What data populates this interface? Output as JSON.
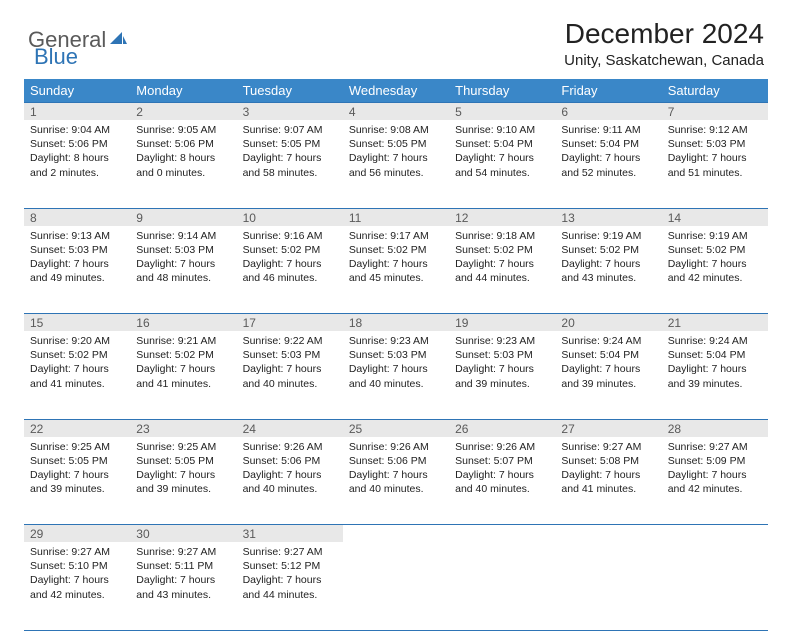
{
  "logo": {
    "text1": "General",
    "text2": "Blue"
  },
  "title": "December 2024",
  "location": "Unity, Saskatchewan, Canada",
  "colors": {
    "header_bg": "#3a87c8",
    "daynum_bg": "#e8e8e8",
    "border": "#2e74b5",
    "text": "#222222",
    "logo_gray": "#5a5a5a",
    "logo_blue": "#2e74b5"
  },
  "weekdays": [
    "Sunday",
    "Monday",
    "Tuesday",
    "Wednesday",
    "Thursday",
    "Friday",
    "Saturday"
  ],
  "weeks": [
    [
      {
        "num": "1",
        "sunrise": "Sunrise: 9:04 AM",
        "sunset": "Sunset: 5:06 PM",
        "daylight": "Daylight: 8 hours and 2 minutes."
      },
      {
        "num": "2",
        "sunrise": "Sunrise: 9:05 AM",
        "sunset": "Sunset: 5:06 PM",
        "daylight": "Daylight: 8 hours and 0 minutes."
      },
      {
        "num": "3",
        "sunrise": "Sunrise: 9:07 AM",
        "sunset": "Sunset: 5:05 PM",
        "daylight": "Daylight: 7 hours and 58 minutes."
      },
      {
        "num": "4",
        "sunrise": "Sunrise: 9:08 AM",
        "sunset": "Sunset: 5:05 PM",
        "daylight": "Daylight: 7 hours and 56 minutes."
      },
      {
        "num": "5",
        "sunrise": "Sunrise: 9:10 AM",
        "sunset": "Sunset: 5:04 PM",
        "daylight": "Daylight: 7 hours and 54 minutes."
      },
      {
        "num": "6",
        "sunrise": "Sunrise: 9:11 AM",
        "sunset": "Sunset: 5:04 PM",
        "daylight": "Daylight: 7 hours and 52 minutes."
      },
      {
        "num": "7",
        "sunrise": "Sunrise: 9:12 AM",
        "sunset": "Sunset: 5:03 PM",
        "daylight": "Daylight: 7 hours and 51 minutes."
      }
    ],
    [
      {
        "num": "8",
        "sunrise": "Sunrise: 9:13 AM",
        "sunset": "Sunset: 5:03 PM",
        "daylight": "Daylight: 7 hours and 49 minutes."
      },
      {
        "num": "9",
        "sunrise": "Sunrise: 9:14 AM",
        "sunset": "Sunset: 5:03 PM",
        "daylight": "Daylight: 7 hours and 48 minutes."
      },
      {
        "num": "10",
        "sunrise": "Sunrise: 9:16 AM",
        "sunset": "Sunset: 5:02 PM",
        "daylight": "Daylight: 7 hours and 46 minutes."
      },
      {
        "num": "11",
        "sunrise": "Sunrise: 9:17 AM",
        "sunset": "Sunset: 5:02 PM",
        "daylight": "Daylight: 7 hours and 45 minutes."
      },
      {
        "num": "12",
        "sunrise": "Sunrise: 9:18 AM",
        "sunset": "Sunset: 5:02 PM",
        "daylight": "Daylight: 7 hours and 44 minutes."
      },
      {
        "num": "13",
        "sunrise": "Sunrise: 9:19 AM",
        "sunset": "Sunset: 5:02 PM",
        "daylight": "Daylight: 7 hours and 43 minutes."
      },
      {
        "num": "14",
        "sunrise": "Sunrise: 9:19 AM",
        "sunset": "Sunset: 5:02 PM",
        "daylight": "Daylight: 7 hours and 42 minutes."
      }
    ],
    [
      {
        "num": "15",
        "sunrise": "Sunrise: 9:20 AM",
        "sunset": "Sunset: 5:02 PM",
        "daylight": "Daylight: 7 hours and 41 minutes."
      },
      {
        "num": "16",
        "sunrise": "Sunrise: 9:21 AM",
        "sunset": "Sunset: 5:02 PM",
        "daylight": "Daylight: 7 hours and 41 minutes."
      },
      {
        "num": "17",
        "sunrise": "Sunrise: 9:22 AM",
        "sunset": "Sunset: 5:03 PM",
        "daylight": "Daylight: 7 hours and 40 minutes."
      },
      {
        "num": "18",
        "sunrise": "Sunrise: 9:23 AM",
        "sunset": "Sunset: 5:03 PM",
        "daylight": "Daylight: 7 hours and 40 minutes."
      },
      {
        "num": "19",
        "sunrise": "Sunrise: 9:23 AM",
        "sunset": "Sunset: 5:03 PM",
        "daylight": "Daylight: 7 hours and 39 minutes."
      },
      {
        "num": "20",
        "sunrise": "Sunrise: 9:24 AM",
        "sunset": "Sunset: 5:04 PM",
        "daylight": "Daylight: 7 hours and 39 minutes."
      },
      {
        "num": "21",
        "sunrise": "Sunrise: 9:24 AM",
        "sunset": "Sunset: 5:04 PM",
        "daylight": "Daylight: 7 hours and 39 minutes."
      }
    ],
    [
      {
        "num": "22",
        "sunrise": "Sunrise: 9:25 AM",
        "sunset": "Sunset: 5:05 PM",
        "daylight": "Daylight: 7 hours and 39 minutes."
      },
      {
        "num": "23",
        "sunrise": "Sunrise: 9:25 AM",
        "sunset": "Sunset: 5:05 PM",
        "daylight": "Daylight: 7 hours and 39 minutes."
      },
      {
        "num": "24",
        "sunrise": "Sunrise: 9:26 AM",
        "sunset": "Sunset: 5:06 PM",
        "daylight": "Daylight: 7 hours and 40 minutes."
      },
      {
        "num": "25",
        "sunrise": "Sunrise: 9:26 AM",
        "sunset": "Sunset: 5:06 PM",
        "daylight": "Daylight: 7 hours and 40 minutes."
      },
      {
        "num": "26",
        "sunrise": "Sunrise: 9:26 AM",
        "sunset": "Sunset: 5:07 PM",
        "daylight": "Daylight: 7 hours and 40 minutes."
      },
      {
        "num": "27",
        "sunrise": "Sunrise: 9:27 AM",
        "sunset": "Sunset: 5:08 PM",
        "daylight": "Daylight: 7 hours and 41 minutes."
      },
      {
        "num": "28",
        "sunrise": "Sunrise: 9:27 AM",
        "sunset": "Sunset: 5:09 PM",
        "daylight": "Daylight: 7 hours and 42 minutes."
      }
    ],
    [
      {
        "num": "29",
        "sunrise": "Sunrise: 9:27 AM",
        "sunset": "Sunset: 5:10 PM",
        "daylight": "Daylight: 7 hours and 42 minutes."
      },
      {
        "num": "30",
        "sunrise": "Sunrise: 9:27 AM",
        "sunset": "Sunset: 5:11 PM",
        "daylight": "Daylight: 7 hours and 43 minutes."
      },
      {
        "num": "31",
        "sunrise": "Sunrise: 9:27 AM",
        "sunset": "Sunset: 5:12 PM",
        "daylight": "Daylight: 7 hours and 44 minutes."
      },
      null,
      null,
      null,
      null
    ]
  ]
}
